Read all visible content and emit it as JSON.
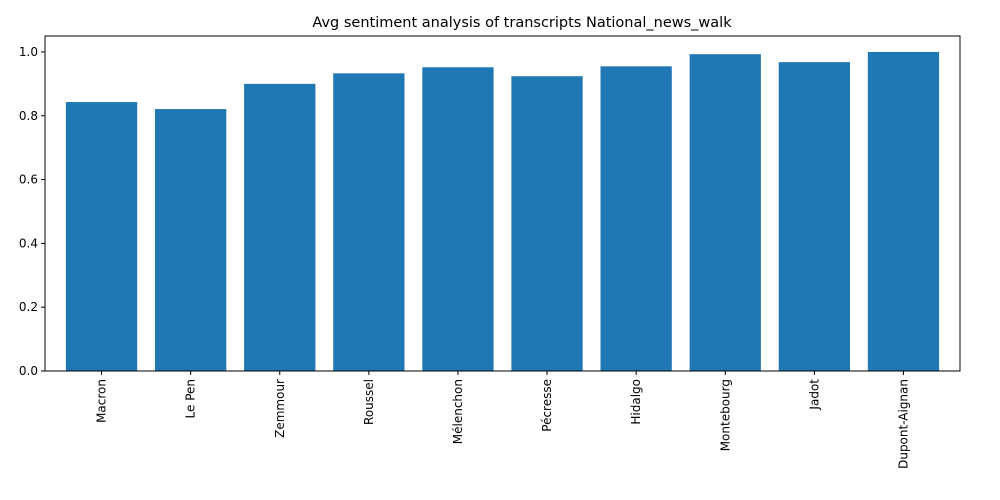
{
  "chart_data": {
    "type": "bar",
    "title": "Avg sentiment analysis of transcripts National_news_walk",
    "xlabel": "",
    "ylabel": "",
    "categories": [
      "Macron",
      "Le Pen",
      "Zemmour",
      "Roussel",
      "Mélenchon",
      "Pécresse",
      "Hidalgo",
      "Montebourg",
      "Jadot",
      "Dupont-Aignan"
    ],
    "values": [
      0.843,
      0.821,
      0.9,
      0.933,
      0.952,
      0.924,
      0.955,
      0.993,
      0.968,
      1.0
    ],
    "ylim": [
      0,
      1.05
    ],
    "yticks": [
      0.0,
      0.2,
      0.4,
      0.6,
      0.8,
      1.0
    ],
    "ytick_labels": [
      "0.0",
      "0.2",
      "0.4",
      "0.6",
      "0.8",
      "1.0"
    ],
    "bar_color": "#1f77b4",
    "grid": false,
    "legend": "none"
  }
}
